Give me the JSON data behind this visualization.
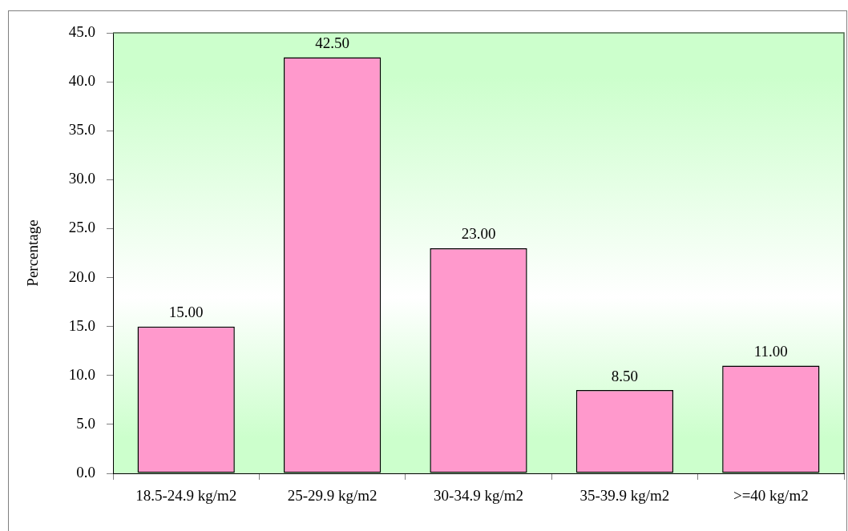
{
  "chart_data": {
    "type": "bar",
    "ylabel": "Percentage",
    "categories": [
      "18.5-24.9 kg/m2",
      "25-29.9 kg/m2",
      "30-34.9 kg/m2",
      "35-39.9 kg/m2",
      ">=40 kg/m2"
    ],
    "values": [
      15,
      42.5,
      23,
      8.5,
      11
    ],
    "value_labels": [
      "15.00",
      "42.50",
      "23.00",
      "8.50",
      "11.00"
    ],
    "color": "#ff99cc",
    "ylim": [
      0,
      45
    ],
    "yticks": [
      {
        "value": 0,
        "label": "0.0"
      },
      {
        "value": 5,
        "label": "5.0"
      },
      {
        "value": 10,
        "label": "10.0"
      },
      {
        "value": 15,
        "label": "15.0"
      },
      {
        "value": 20,
        "label": "20.0"
      },
      {
        "value": 25,
        "label": "25.0"
      },
      {
        "value": 30,
        "label": "30.0"
      },
      {
        "value": 35,
        "label": "35.0"
      },
      {
        "value": 40,
        "label": "40.0"
      },
      {
        "value": 45,
        "label": "45.0"
      }
    ],
    "grid": false
  }
}
